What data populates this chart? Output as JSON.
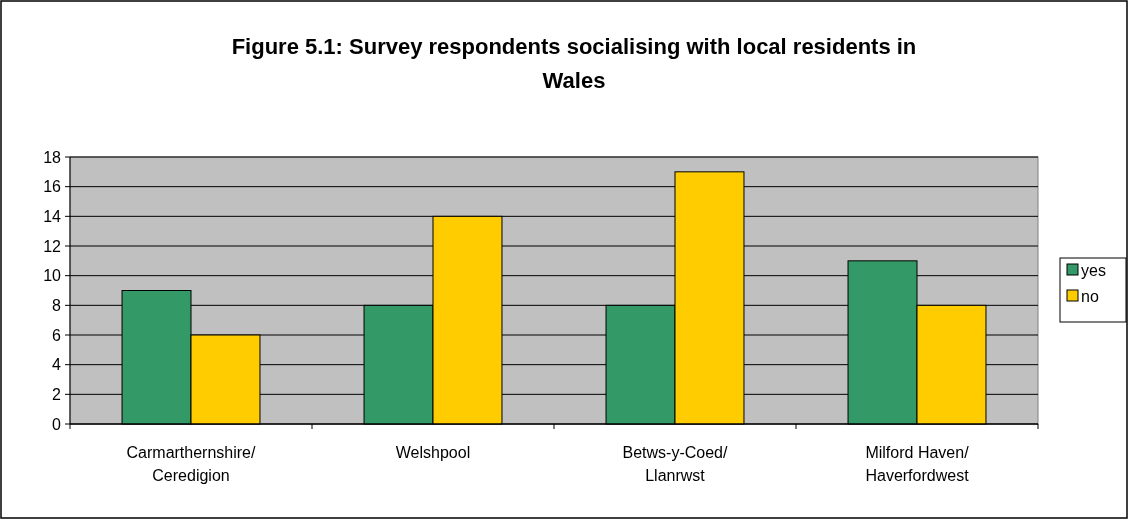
{
  "chart_data": {
    "type": "bar",
    "title": "Figure 5.1: Survey respondents socialising with local residents in Wales",
    "categories": [
      "Carmarthernshire/ Ceredigion",
      "Welshpool",
      "Betws-y-Coed/ Llanrwst",
      "Milford Haven/ Haverfordwest"
    ],
    "series": [
      {
        "name": "yes",
        "color": "#339966",
        "values": [
          9,
          8,
          8,
          11
        ]
      },
      {
        "name": "no",
        "color": "#ffcc00",
        "values": [
          6,
          14,
          17,
          8
        ]
      }
    ],
    "ylim": [
      0,
      18
    ],
    "yticks": [
      0,
      2,
      4,
      6,
      8,
      10,
      12,
      14,
      16,
      18
    ],
    "grid": "y",
    "legend": "right"
  }
}
